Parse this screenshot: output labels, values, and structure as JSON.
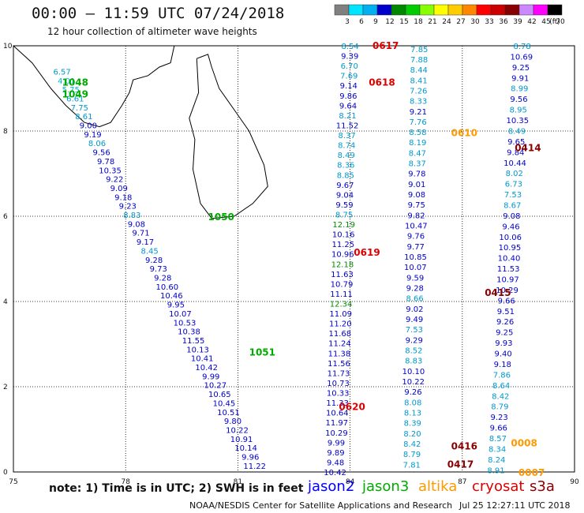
{
  "header": {
    "title": "00:00 – 11:59 UTC 07/24/2018",
    "subtitle": "12 hour collection of altimeter wave heights"
  },
  "color_scale": {
    "labels": [
      "3",
      "6",
      "9",
      "12",
      "15",
      "18",
      "21",
      "24",
      "27",
      "30",
      "33",
      "36",
      "39",
      "42",
      "45",
      "70",
      "(ft)"
    ],
    "colors": [
      "#808080",
      "#00e5ff",
      "#00b0f0",
      "#0000cc",
      "#008800",
      "#00cc00",
      "#88ff00",
      "#ffff00",
      "#ffcc00",
      "#ff8800",
      "#ff0000",
      "#cc0000",
      "#880000",
      "#cc88ff",
      "#ff00ff",
      "#000000"
    ]
  },
  "footer": {
    "note": "note: 1) Time is in UTC; 2) SWH is in feet",
    "satellites": [
      {
        "name": "jason2",
        "color": "#0000ff"
      },
      {
        "name": "jason3",
        "color": "#00aa00"
      },
      {
        "name": "altika",
        "color": "#ff9900"
      },
      {
        "name": "cryosat",
        "color": "#dd0000"
      },
      {
        "name": "s3a",
        "color": "#880000"
      }
    ],
    "credit": "NOAA/NESDIS Center for Satellite Applications and Research",
    "generated": "Jul 25 12:27:11 UTC 2018"
  },
  "chart_data": {
    "type": "scatter",
    "title": "12 hour collection of altimeter wave heights",
    "x_ticks": [
      "75",
      "78",
      "81",
      "84",
      "87",
      "90"
    ],
    "y_ticks": [
      "0",
      "2",
      "4",
      "6",
      "8",
      "10"
    ],
    "xlim": [
      75,
      90
    ],
    "ylim": [
      0,
      10
    ],
    "grid": true,
    "time_labels": [
      {
        "text": "1048",
        "lon": 76.3,
        "lat": 9.14,
        "color": "#00aa00"
      },
      {
        "text": "1049",
        "lon": 76.3,
        "lat": 8.86,
        "color": "#00aa00"
      },
      {
        "text": "1050",
        "lon": 80.2,
        "lat": 5.98,
        "color": "#00aa00"
      },
      {
        "text": "1051",
        "lon": 81.3,
        "lat": 2.81,
        "color": "#00aa00"
      },
      {
        "text": "0617",
        "lon": 84.6,
        "lat": 10.0,
        "color": "#dd0000"
      },
      {
        "text": "0618",
        "lon": 84.5,
        "lat": 9.14,
        "color": "#dd0000"
      },
      {
        "text": "0619",
        "lon": 84.1,
        "lat": 5.15,
        "color": "#dd0000"
      },
      {
        "text": "0620",
        "lon": 83.7,
        "lat": 1.53,
        "color": "#dd0000"
      },
      {
        "text": "0610",
        "lon": 86.7,
        "lat": 7.95,
        "color": "#ff9900"
      },
      {
        "text": "0414",
        "lon": 88.4,
        "lat": 7.6,
        "color": "#880000"
      },
      {
        "text": "0415",
        "lon": 87.6,
        "lat": 4.2,
        "color": "#880000"
      },
      {
        "text": "0416",
        "lon": 86.7,
        "lat": 0.6,
        "color": "#880000"
      },
      {
        "text": "0417",
        "lon": 86.6,
        "lat": 0.18,
        "color": "#880000"
      },
      {
        "text": "0008",
        "lon": 88.3,
        "lat": 0.68,
        "color": "#ff9900"
      },
      {
        "text": "0007",
        "lon": 88.5,
        "lat": -0.02,
        "color": "#ff9900"
      }
    ],
    "tracks": [
      {
        "name": "jason3",
        "start": [
          76.3,
          9.4
        ],
        "end": [
          81.45,
          0.15
        ],
        "values": [
          "6.57",
          "4.01",
          "5.75",
          "6.61",
          "7.75",
          "8.61",
          "9.00",
          "9.19",
          "8.06",
          "9.56",
          "9.78",
          "10.35",
          "9.22",
          "9.09",
          "9.18",
          "9.23",
          "8.83",
          "9.08",
          "9.71",
          "9.17",
          "8.45",
          "9.28",
          "9.73",
          "9.28",
          "10.60",
          "10.46",
          "9.95",
          "10.07",
          "10.53",
          "10.38",
          "11.55",
          "10.13",
          "10.41",
          "10.42",
          "9.99",
          "10.27",
          "10.65",
          "10.45",
          "10.51",
          "9.80",
          "10.22",
          "10.91",
          "10.14",
          "9.96",
          "11.22"
        ]
      },
      {
        "name": "cryosat",
        "start": [
          84.0,
          10.0
        ],
        "end": [
          83.6,
          0.0
        ],
        "values": [
          "8.54",
          "9.39",
          "6.70",
          "7.69",
          "9.14",
          "9.86",
          "9.64",
          "8.21",
          "11.52",
          "8.37",
          "8.74",
          "8.49",
          "8.36",
          "8.85",
          "9.67",
          "9.04",
          "9.59",
          "8.75",
          "12.19",
          "10.16",
          "11.25",
          "10.96",
          "12.18",
          "11.63",
          "10.79",
          "11.11",
          "12.34",
          "11.09",
          "11.20",
          "11.68",
          "11.24",
          "11.38",
          "11.56",
          "11.73",
          "10.73",
          "10.33",
          "11.33",
          "10.64",
          "11.97",
          "10.29",
          "9.99",
          "9.89",
          "9.48",
          "10.42"
        ]
      },
      {
        "name": "altika",
        "start": [
          85.85,
          9.93
        ],
        "end": [
          85.65,
          0.18
        ],
        "values": [
          "7.85",
          "7.88",
          "8.44",
          "8.41",
          "7.26",
          "8.33",
          "9.21",
          "7.76",
          "8.58",
          "8.19",
          "8.47",
          "8.37",
          "9.78",
          "9.01",
          "9.08",
          "9.75",
          "9.82",
          "10.47",
          "9.76",
          "9.77",
          "10.85",
          "10.07",
          "9.59",
          "9.28",
          "8.66",
          "9.02",
          "9.49",
          "7.53",
          "9.29",
          "8.52",
          "8.83",
          "10.10",
          "10.22",
          "9.26",
          "8.08",
          "8.13",
          "8.39",
          "8.20",
          "8.42",
          "8.79",
          "7.81"
        ]
      },
      {
        "name": "s3a",
        "start": [
          88.6,
          10.0
        ],
        "end": [
          87.9,
          0.05
        ],
        "values": [
          "8.78",
          "10.69",
          "9.25",
          "9.91",
          "8.99",
          "9.56",
          "8.95",
          "10.35",
          "8.49",
          "9.65",
          "9.84",
          "10.44",
          "8.02",
          "6.73",
          "7.53",
          "8.67",
          "9.08",
          "9.46",
          "10.06",
          "10.95",
          "10.40",
          "11.53",
          "10.97",
          "10.29",
          "9.66",
          "9.51",
          "9.26",
          "9.25",
          "9.93",
          "9.40",
          "9.18",
          "7.86",
          "8.64",
          "8.42",
          "8.79",
          "9.23",
          "9.66",
          "8.57",
          "8.34",
          "8.24",
          "8.91"
        ]
      }
    ]
  }
}
